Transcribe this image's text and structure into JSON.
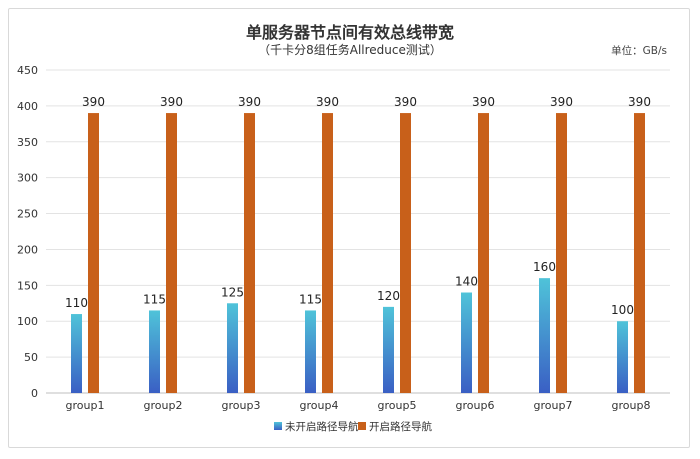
{
  "chart_data": {
    "type": "bar",
    "title": "单服务器节点间有效总线带宽",
    "subtitle": "（千卡分8组任务Allreduce测试）",
    "unit_label": "单位：GB/s",
    "categories": [
      "group1",
      "group2",
      "group3",
      "group4",
      "group5",
      "group6",
      "group7",
      "group8"
    ],
    "series": [
      {
        "name": "未开启路径导航",
        "values": [
          110,
          115,
          125,
          115,
          120,
          140,
          160,
          100
        ]
      },
      {
        "name": "开启路径导航",
        "values": [
          390,
          390,
          390,
          390,
          390,
          390,
          390,
          390
        ]
      }
    ],
    "yticks": [
      "0",
      "50",
      "100",
      "150",
      "200",
      "250",
      "300",
      "350",
      "400",
      "450"
    ],
    "ylim": [
      0,
      450
    ],
    "grid": true,
    "legend_position": "bottom",
    "colors": {
      "series1_top": "#4fc3d9",
      "series1_bottom": "#3a5fc4",
      "series2": "#c8601a"
    }
  }
}
